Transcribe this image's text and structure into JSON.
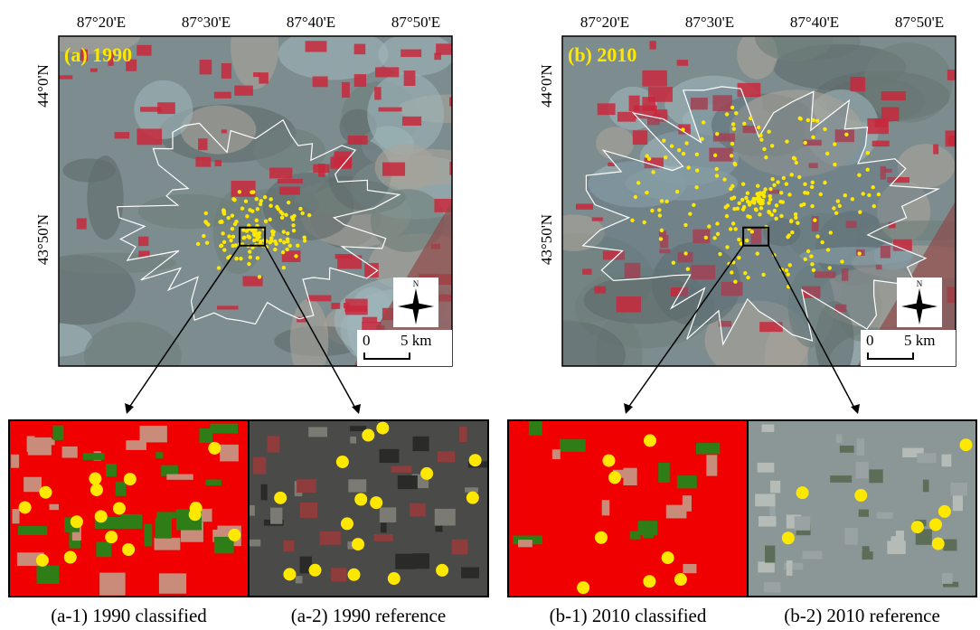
{
  "panels": [
    {
      "label": "(a) 1990",
      "top_ticks": [
        "87°20'E",
        "87°30'E",
        "87°40'E",
        "87°50'E"
      ],
      "left_ticks": [
        "44°0'N",
        "43°50'N"
      ],
      "north": "N",
      "scale": [
        "0",
        "5 km"
      ],
      "insets": [
        "(a-1) 1990 classified",
        "(a-2) 1990 reference"
      ]
    },
    {
      "label": "(b) 2010",
      "top_ticks": [
        "87°20'E",
        "87°30'E",
        "87°40'E",
        "87°50'E"
      ],
      "left_ticks": [
        "44°0'N",
        "43°50'N"
      ],
      "north": "N",
      "scale": [
        "0",
        "5 km"
      ],
      "insets": [
        "(b-1) 2010 classified",
        "(b-2) 2010 reference"
      ]
    }
  ]
}
